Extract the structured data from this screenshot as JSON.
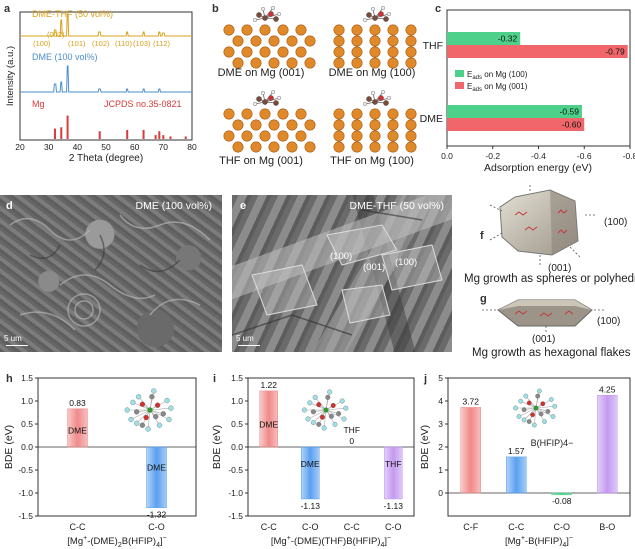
{
  "panels": {
    "a": "a",
    "b": "b",
    "c": "c",
    "d": "d",
    "e": "e",
    "f": "f",
    "g": "g",
    "h": "h",
    "i": "i",
    "j": "j"
  },
  "xrd": {
    "series": [
      {
        "name": "DME-THF (50 vol%)",
        "color": "#d9a21b"
      },
      {
        "name": "DME (100 vol%)",
        "color": "#4b8fcf"
      },
      {
        "name": "Mg",
        "color": "#d93a3a"
      }
    ],
    "reference": "JCPDS no.35-0821",
    "peak_labels": [
      "(100)",
      "(002)",
      "(101)",
      "(102)",
      "(110)",
      "(103)",
      "(112)"
    ],
    "ylabel": "Intensity (a.u.)",
    "xlabel": "2 Theta (degree)",
    "xticks": [
      "20",
      "30",
      "40",
      "50",
      "60",
      "70",
      "80"
    ]
  },
  "structures": {
    "labels": [
      "DME on Mg (001)",
      "DME on Mg (100)",
      "THF on Mg (001)",
      "THF on Mg (100)"
    ],
    "colors": {
      "mg": "#e0892a",
      "carbon": "#7a4a3a",
      "oxygen": "#d23030",
      "hydrogen": "#f0f0f0"
    }
  },
  "sem": {
    "d": {
      "label": "DME (100 vol%)",
      "scale": "5 um"
    },
    "e": {
      "label": "DME-THF (50 vol%)",
      "scale": "5 um",
      "facets": [
        "(100)",
        "(001)",
        "(100)"
      ]
    }
  },
  "schemes": {
    "f": {
      "facet_side": "(100)",
      "facet_bottom": "(001)",
      "caption": "Mg growth as spheres or polyhedra"
    },
    "g": {
      "facet_side": "(100)",
      "facet_bottom": "(001)",
      "caption": "Mg growth as hexagonal flakes"
    }
  },
  "chart_data": [
    {
      "panel": "c",
      "type": "bar",
      "orientation": "horizontal",
      "categories": [
        "THF",
        "DME"
      ],
      "series": [
        {
          "name": "E_ads on Mg (100)",
          "color": "#4dd08a",
          "values": [
            -0.32,
            -0.59
          ]
        },
        {
          "name": "E_ads on Mg (001)",
          "color": "#f0666a",
          "values": [
            -0.79,
            -0.6
          ]
        }
      ],
      "legend_text": [
        {
          "main": "E",
          "sub": "ads",
          "rest": " on Mg (100)"
        },
        {
          "main": "E",
          "sub": "ads",
          "rest": " on Mg (001)"
        }
      ],
      "xlabel": "Adsorption energy (eV)",
      "xlim": [
        0,
        -0.8
      ],
      "xticks": [
        "0.0",
        "-0.2",
        "-0.4",
        "-0.6",
        "-0.8"
      ],
      "legend": "center-right"
    },
    {
      "panel": "h",
      "type": "bar",
      "categories": [
        "C-C",
        "C-O"
      ],
      "values": [
        0.83,
        -1.32
      ],
      "colors": [
        "#f08a8a",
        "#5aa0f0"
      ],
      "bar_labels": [
        "DME",
        "DME"
      ],
      "value_labels": [
        "0.83",
        "-1.32"
      ],
      "ylabel": "BDE (eV)",
      "ylim": [
        -1.5,
        1.5
      ],
      "yticks": [
        "-1.5",
        "-1.0",
        "-0.5",
        "0.0",
        "0.5",
        "1.0",
        "1.5"
      ],
      "xlabel_parts": [
        "[Mg",
        "+",
        "-(DME)",
        "2",
        "B(HFIP)",
        "4",
        "]",
        "−"
      ]
    },
    {
      "panel": "i",
      "type": "bar",
      "categories": [
        "C-C",
        "C-O",
        "C-C",
        "C-O"
      ],
      "values": [
        1.22,
        -1.13,
        0,
        -1.13
      ],
      "colors": [
        "#f08a8a",
        "#5aa0f0",
        "#888888",
        "#c39af0"
      ],
      "bar_labels": [
        "DME",
        "DME",
        "THF",
        "THF"
      ],
      "value_labels": [
        "1.22",
        "-1.13",
        "0",
        "-1.13"
      ],
      "ylabel": "BDE (eV)",
      "ylim": [
        -1.5,
        1.5
      ],
      "yticks": [
        "-1.5",
        "-1.0",
        "-0.5",
        "0.0",
        "0.5",
        "1.0",
        "1.5"
      ],
      "xlabel_parts": [
        "[Mg",
        "+",
        "-(DME)(THF)B(HFIP)",
        "4",
        "]",
        "−"
      ]
    },
    {
      "panel": "j",
      "type": "bar",
      "categories": [
        "C-F",
        "C-C",
        "C-O",
        "B-O"
      ],
      "values": [
        3.72,
        1.57,
        -0.08,
        4.25
      ],
      "colors": [
        "#f08a8a",
        "#5aa0f0",
        "#4dd08a",
        "#c39af0"
      ],
      "value_labels": [
        "3.72",
        "1.57",
        "-0.08",
        "4.25"
      ],
      "inset_label": "B(HFIP)4−",
      "ylabel": "BDE (eV)",
      "ylim": [
        -1,
        5
      ],
      "yticks": [
        "0",
        "1",
        "2",
        "3",
        "4",
        "5"
      ],
      "xlabel_parts": [
        "[Mg",
        "+",
        "-B(HFIP)",
        "4",
        "]",
        "−"
      ]
    }
  ]
}
